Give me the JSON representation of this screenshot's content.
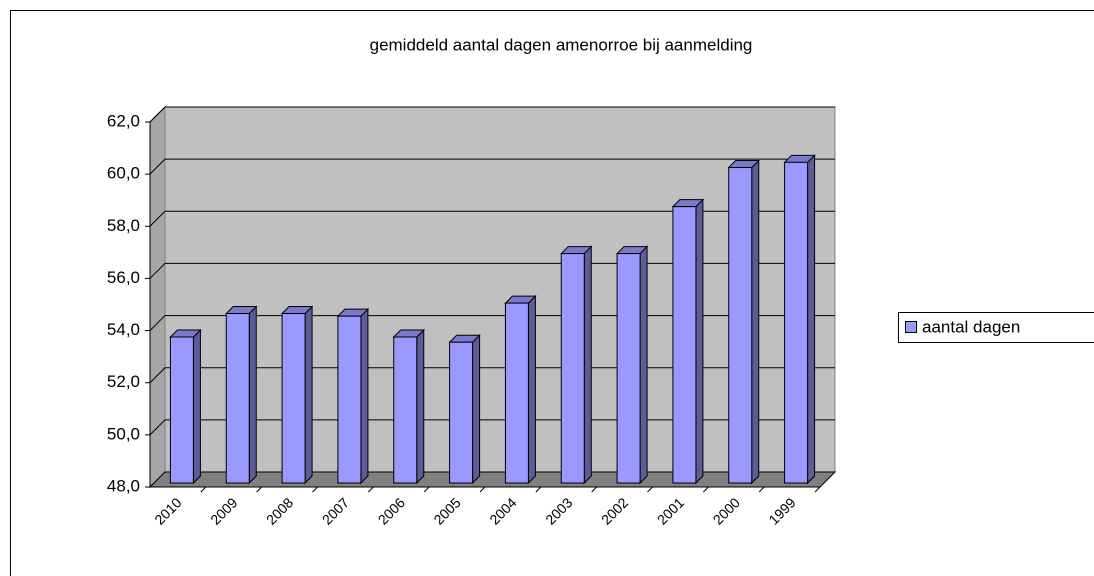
{
  "chart_data": {
    "type": "bar3d",
    "title": "gemiddeld aantal dagen amenorroe bij aanmelding",
    "categories": [
      "2010",
      "2009",
      "2008",
      "2007",
      "2006",
      "2005",
      "2004",
      "2003",
      "2002",
      "2001",
      "2000",
      "1999"
    ],
    "series": [
      {
        "name": "aantal dagen",
        "color": "#9999ff",
        "values": [
          53.6,
          54.5,
          54.5,
          54.4,
          53.6,
          53.4,
          54.9,
          56.8,
          56.8,
          58.6,
          60.1,
          60.3
        ]
      }
    ],
    "ylim": [
      48,
      62
    ],
    "yticks": [
      {
        "value": 48,
        "label": "48,0"
      },
      {
        "value": 50,
        "label": "50,0"
      },
      {
        "value": 52,
        "label": "52,0"
      },
      {
        "value": 54,
        "label": "54,0"
      },
      {
        "value": 56,
        "label": "56,0"
      },
      {
        "value": 58,
        "label": "58,0"
      },
      {
        "value": 60,
        "label": "60,0"
      },
      {
        "value": 62,
        "label": "62,0"
      }
    ],
    "grid": true
  }
}
